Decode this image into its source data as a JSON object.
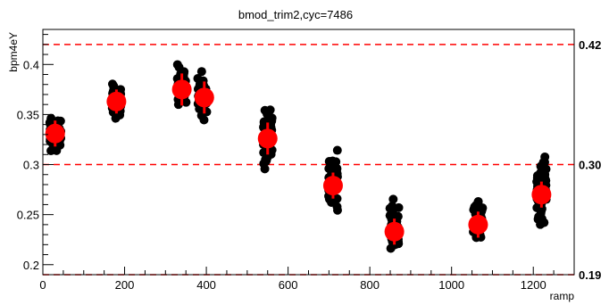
{
  "chart_data": {
    "type": "scatter",
    "title": "bmod_trim2,cyc=7486",
    "xlabel": "ramp",
    "ylabel": "bpm4eY",
    "xlim": [
      0,
      1300
    ],
    "ylim": [
      0.19,
      0.435
    ],
    "x_ticks": [
      0,
      200,
      400,
      600,
      800,
      1000,
      1200
    ],
    "y_ticks": [
      0.2,
      0.25,
      0.3,
      0.35,
      0.4
    ],
    "y_tick_labels": [
      "0.2",
      "0.25",
      "0.3",
      "0.35",
      "0.4"
    ],
    "reference_lines": [
      {
        "value": 0.42,
        "label": "0.42",
        "color": "#ff0000",
        "style": "dashed"
      },
      {
        "value": 0.3,
        "label": "0.30",
        "color": "#ff0000",
        "style": "dashed"
      },
      {
        "value": 0.19,
        "label": "0.19",
        "color": "#ff0000",
        "style": "dashed"
      }
    ],
    "series": [
      {
        "marker_color": "#000000",
        "clusters": [
          {
            "x_center": 30,
            "x_spread": 28,
            "y_min": 0.31,
            "y_max": 0.355,
            "count": 60
          },
          {
            "x_center": 180,
            "x_spread": 22,
            "y_min": 0.34,
            "y_max": 0.387,
            "count": 60
          },
          {
            "x_center": 340,
            "x_spread": 22,
            "y_min": 0.355,
            "y_max": 0.41,
            "count": 30
          },
          {
            "x_center": 390,
            "x_spread": 22,
            "y_min": 0.34,
            "y_max": 0.4,
            "count": 30
          },
          {
            "x_center": 550,
            "x_spread": 22,
            "y_min": 0.29,
            "y_max": 0.367,
            "count": 60
          },
          {
            "x_center": 710,
            "x_spread": 22,
            "y_min": 0.245,
            "y_max": 0.32,
            "count": 60
          },
          {
            "x_center": 860,
            "x_spread": 22,
            "y_min": 0.2,
            "y_max": 0.272,
            "count": 60
          },
          {
            "x_center": 1065,
            "x_spread": 24,
            "y_min": 0.22,
            "y_max": 0.272,
            "count": 60
          },
          {
            "x_center": 1220,
            "x_spread": 24,
            "y_min": 0.235,
            "y_max": 0.317,
            "count": 60
          }
        ]
      },
      {
        "marker_color": "#ff0000",
        "points": [
          {
            "x": 30,
            "y": 0.331,
            "err": 0.013
          },
          {
            "x": 180,
            "y": 0.363,
            "err": 0.012
          },
          {
            "x": 340,
            "y": 0.375,
            "err": 0.016
          },
          {
            "x": 395,
            "y": 0.367,
            "err": 0.016
          },
          {
            "x": 550,
            "y": 0.326,
            "err": 0.016
          },
          {
            "x": 710,
            "y": 0.279,
            "err": 0.013
          },
          {
            "x": 860,
            "y": 0.233,
            "err": 0.013
          },
          {
            "x": 1065,
            "y": 0.24,
            "err": 0.013
          },
          {
            "x": 1220,
            "y": 0.27,
            "err": 0.013
          }
        ]
      }
    ]
  }
}
